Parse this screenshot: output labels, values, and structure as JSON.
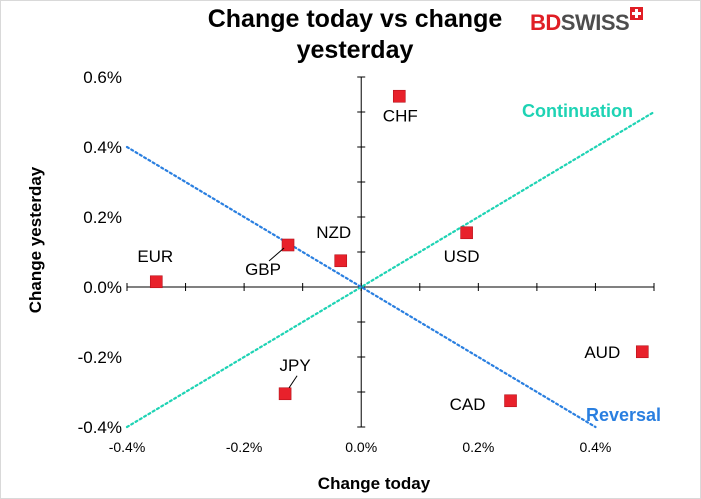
{
  "chart_data": {
    "type": "scatter",
    "title": "Change today vs change yesterday",
    "xlabel": "Change today",
    "ylabel": "Change yesterday",
    "xlim": [
      -0.4,
      0.5
    ],
    "ylim": [
      -0.4,
      0.6
    ],
    "x_ticks": [
      -0.4,
      -0.2,
      0.0,
      0.2,
      0.4
    ],
    "x_tick_labels": [
      "-0.4%",
      "-0.2%",
      "0.0%",
      "0.2%",
      "0.4%"
    ],
    "y_ticks": [
      -0.4,
      -0.2,
      0.0,
      0.2,
      0.4,
      0.6
    ],
    "y_tick_labels": [
      "-0.4%",
      "-0.2%",
      "0.0%",
      "0.2%",
      "0.4%",
      "0.6%"
    ],
    "grid": false,
    "marker_color": "#e8212b",
    "points": [
      {
        "label": "EUR",
        "x": -0.35,
        "y": 0.015
      },
      {
        "label": "GBP",
        "x": -0.125,
        "y": 0.12
      },
      {
        "label": "NZD",
        "x": -0.035,
        "y": 0.075
      },
      {
        "label": "CHF",
        "x": 0.065,
        "y": 0.545
      },
      {
        "label": "USD",
        "x": 0.18,
        "y": 0.155
      },
      {
        "label": "AUD",
        "x": 0.48,
        "y": -0.185
      },
      {
        "label": "JPY",
        "x": -0.13,
        "y": -0.305
      },
      {
        "label": "CAD",
        "x": 0.255,
        "y": -0.325
      }
    ],
    "lines": [
      {
        "name": "Continuation",
        "color": "#1ed3b4",
        "from": [
          -0.4,
          -0.4
        ],
        "to": [
          0.5,
          0.5
        ]
      },
      {
        "name": "Reversal",
        "color": "#2a7fe0",
        "from": [
          -0.4,
          0.4
        ],
        "to": [
          0.4,
          -0.4
        ]
      }
    ]
  },
  "brand": {
    "logo_part1": "BD",
    "logo_part2": "SWISS"
  }
}
